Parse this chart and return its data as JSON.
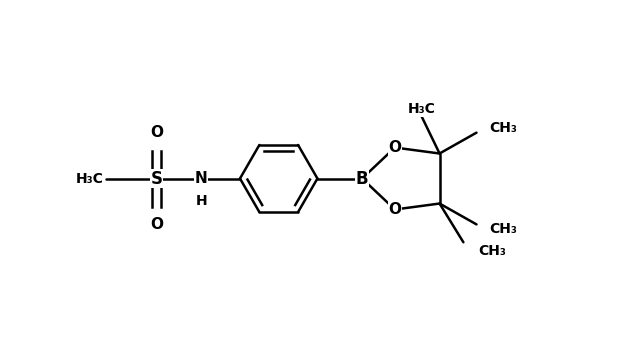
{
  "background_color": "#ffffff",
  "line_color": "#000000",
  "line_width": 1.8,
  "font_size": 11,
  "figsize": [
    6.17,
    3.63
  ],
  "dpi": 100,
  "xlim": [
    0,
    10
  ],
  "ylim": [
    0,
    6
  ]
}
